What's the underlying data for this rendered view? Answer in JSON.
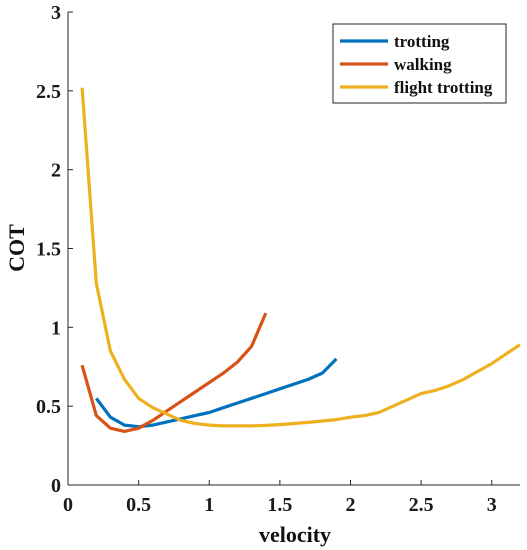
{
  "chart_data": {
    "type": "line",
    "xlabel": "velocity",
    "ylabel": "COT",
    "xlim": [
      0,
      3.2
    ],
    "ylim": [
      0,
      3
    ],
    "xticks": [
      0,
      0.5,
      1,
      1.5,
      2,
      2.5,
      3
    ],
    "yticks": [
      0,
      0.5,
      1,
      1.5,
      2,
      2.5,
      3
    ],
    "xtick_labels": [
      "0",
      "0.5",
      "1",
      "1.5",
      "2",
      "2.5",
      "3"
    ],
    "ytick_labels": [
      "0",
      "0.5",
      "1",
      "1.5",
      "2",
      "2.5",
      "3"
    ],
    "grid": false,
    "legend_position": "top-right",
    "series": [
      {
        "name": "trotting",
        "color": "#0072BD",
        "x": [
          0.2,
          0.3,
          0.4,
          0.5,
          0.6,
          0.7,
          0.8,
          0.9,
          1.0,
          1.1,
          1.2,
          1.3,
          1.4,
          1.5,
          1.6,
          1.7,
          1.8,
          1.9
        ],
        "y": [
          0.55,
          0.43,
          0.38,
          0.37,
          0.38,
          0.4,
          0.42,
          0.44,
          0.46,
          0.49,
          0.52,
          0.55,
          0.58,
          0.61,
          0.64,
          0.67,
          0.71,
          0.8
        ]
      },
      {
        "name": "walking",
        "color": "#D95319",
        "x": [
          0.1,
          0.2,
          0.3,
          0.4,
          0.5,
          0.6,
          0.7,
          0.8,
          0.9,
          1.0,
          1.1,
          1.2,
          1.3,
          1.4
        ],
        "y": [
          0.76,
          0.44,
          0.36,
          0.34,
          0.36,
          0.41,
          0.47,
          0.53,
          0.59,
          0.65,
          0.71,
          0.78,
          0.88,
          1.09
        ]
      },
      {
        "name": "flight trotting",
        "color": "#EDB120",
        "x": [
          0.1,
          0.2,
          0.3,
          0.4,
          0.5,
          0.6,
          0.7,
          0.8,
          0.9,
          1.0,
          1.1,
          1.2,
          1.3,
          1.4,
          1.5,
          1.6,
          1.7,
          1.8,
          1.9,
          2.0,
          2.1,
          2.2,
          2.3,
          2.4,
          2.5,
          2.6,
          2.7,
          2.8,
          2.9,
          3.0,
          3.1,
          3.2
        ],
        "y": [
          2.52,
          1.28,
          0.85,
          0.67,
          0.55,
          0.49,
          0.45,
          0.41,
          0.39,
          0.38,
          0.375,
          0.375,
          0.375,
          0.378,
          0.383,
          0.39,
          0.397,
          0.406,
          0.415,
          0.43,
          0.44,
          0.46,
          0.5,
          0.54,
          0.58,
          0.6,
          0.63,
          0.67,
          0.72,
          0.77,
          0.83,
          0.89
        ]
      }
    ]
  }
}
